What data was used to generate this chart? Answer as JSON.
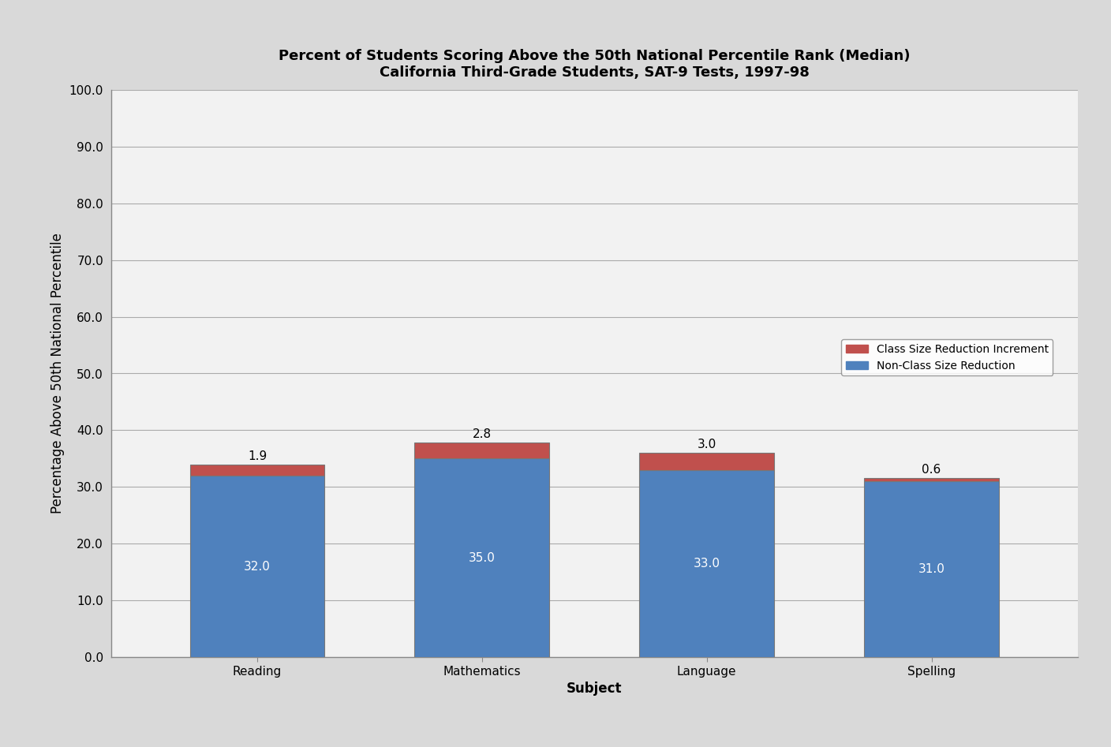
{
  "title_line1": "Percent of Students Scoring Above the 50th National Percentile Rank (Median)",
  "title_line2": "California Third-Grade Students, SAT-9 Tests, 1997-98",
  "categories": [
    "Reading",
    "Mathematics",
    "Language",
    "Spelling"
  ],
  "base_values": [
    32.0,
    35.0,
    33.0,
    31.0
  ],
  "increment_values": [
    1.9,
    2.8,
    3.0,
    0.6
  ],
  "base_color": "#4F81BD",
  "increment_color": "#C0504D",
  "xlabel": "Subject",
  "ylabel": "Percentage Above 50th National Percentile",
  "ylim": [
    0,
    100
  ],
  "yticks": [
    0.0,
    10.0,
    20.0,
    30.0,
    40.0,
    50.0,
    60.0,
    70.0,
    80.0,
    90.0,
    100.0
  ],
  "legend_labels": [
    "Class Size Reduction Increment",
    "Non-Class Size Reduction"
  ],
  "background_color": "#D9D9D9",
  "plot_bg_color": "#F2F2F2",
  "grid_color": "#AAAAAA",
  "title_fontsize": 13,
  "axis_label_fontsize": 12,
  "tick_fontsize": 11,
  "bar_label_fontsize": 11,
  "legend_fontsize": 10,
  "bar_width": 0.6
}
